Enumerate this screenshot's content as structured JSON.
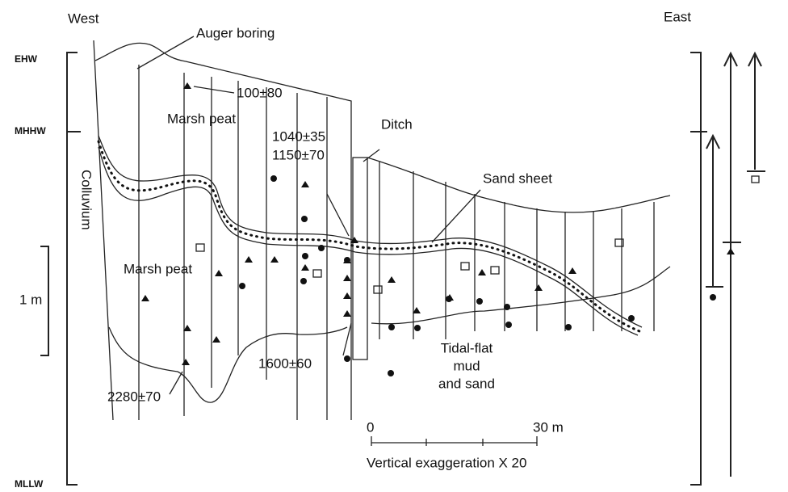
{
  "header": {
    "west": "West",
    "east": "East"
  },
  "scale_left": {
    "ehw": "EHW",
    "mhhw": "MHHW",
    "one_m": "1 m",
    "mllw": "MLLW"
  },
  "labels": {
    "auger_boring": "Auger boring",
    "ditch": "Ditch",
    "sand_sheet": "Sand sheet",
    "colluvium": "Colluvium",
    "marsh_peat_upper": "Marsh peat",
    "marsh_peat_lower": "Marsh peat",
    "tidal_flat": [
      "Tidal-flat",
      "mud",
      "and sand"
    ]
  },
  "dates": [
    "100±80",
    "1040±35",
    "1150±70",
    "1600±60",
    "2280±70"
  ],
  "scale_bar": {
    "start": "0",
    "end": "30 m",
    "caption": "Vertical exaggeration X 20"
  }
}
